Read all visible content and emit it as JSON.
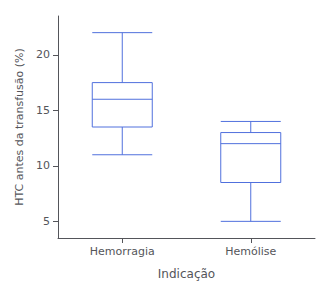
{
  "chart_data": {
    "type": "box",
    "categories": [
      "Hemorragia",
      "Hemólise"
    ],
    "boxes": [
      {
        "whisker_low": 11.0,
        "q1": 13.5,
        "median": 16.0,
        "q3": 17.5,
        "whisker_high": 22.0
      },
      {
        "whisker_low": 5.0,
        "q1": 8.5,
        "median": 12.0,
        "q3": 13.0,
        "whisker_high": 14.0
      }
    ],
    "xlabel": "Indicação",
    "ylabel": "HTC antes da transfusão (%)",
    "ylim": [
      3.5,
      23.5
    ],
    "yticks": [
      5,
      10,
      15,
      20
    ],
    "grid": false
  }
}
